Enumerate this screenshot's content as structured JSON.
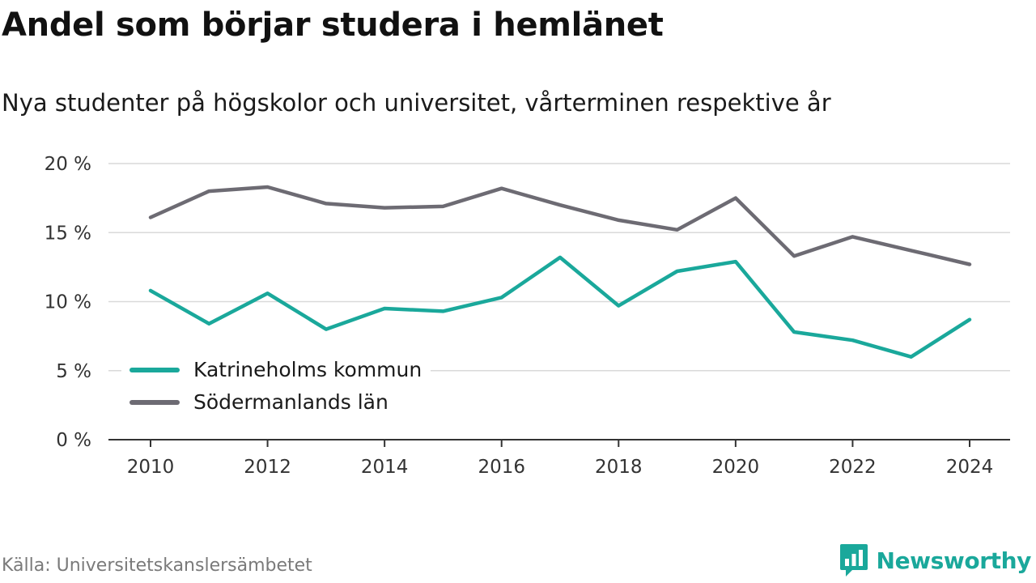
{
  "header": {
    "title": "Andel som börjar studera i hemlänet",
    "subtitle": "Nya studenter på högskolor och universitet, vårterminen respektive år"
  },
  "footer": {
    "source": "Källa: Universitetskanslersämbetet",
    "brand": "Newsworthy"
  },
  "colors": {
    "katrineholm": "#1aa89b",
    "sodermanland": "#6d6b73",
    "grid": "#d9d9d9",
    "axis": "#333333",
    "brand": "#1aa89b"
  },
  "chart_data": {
    "type": "line",
    "x": [
      2010,
      2011,
      2012,
      2013,
      2014,
      2015,
      2016,
      2017,
      2018,
      2019,
      2020,
      2021,
      2022,
      2023,
      2024
    ],
    "series": [
      {
        "name": "Katrineholms kommun",
        "color": "#1aa89b",
        "values": [
          10.8,
          8.4,
          10.6,
          8.0,
          9.5,
          9.3,
          10.3,
          13.2,
          9.7,
          12.2,
          12.9,
          7.8,
          7.2,
          6.0,
          8.7
        ]
      },
      {
        "name": "Södermanlands län",
        "color": "#6d6b73",
        "values": [
          16.1,
          18.0,
          18.3,
          17.1,
          16.8,
          16.9,
          18.2,
          17.0,
          15.9,
          15.2,
          17.5,
          13.3,
          14.7,
          13.7,
          12.7
        ]
      }
    ],
    "y_ticks": [
      0,
      5,
      10,
      15,
      20
    ],
    "y_tick_labels": [
      "0 %",
      "5 %",
      "10 %",
      "15 %",
      "20 %"
    ],
    "x_ticks": [
      2010,
      2012,
      2014,
      2016,
      2018,
      2020,
      2022,
      2024
    ],
    "x_tick_labels": [
      "2010",
      "2012",
      "2014",
      "2016",
      "2018",
      "2020",
      "2022",
      "2024"
    ],
    "ylim": [
      0,
      20
    ],
    "xlim": [
      2010,
      2024
    ],
    "grid": true,
    "legend_position": "bottom-left"
  }
}
